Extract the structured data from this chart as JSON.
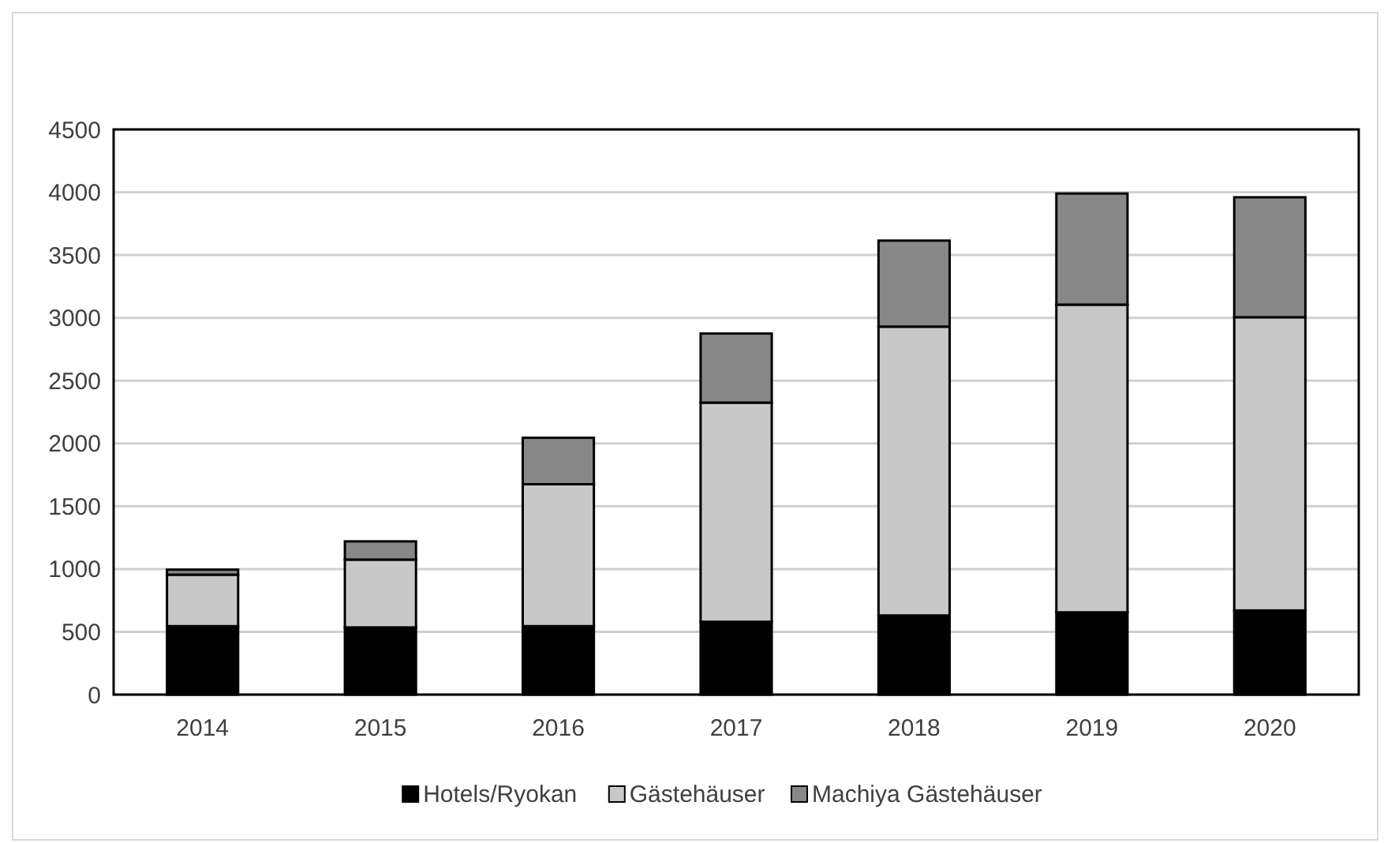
{
  "chart_data": {
    "type": "bar",
    "stacked": true,
    "categories": [
      "2014",
      "2015",
      "2016",
      "2017",
      "2018",
      "2019",
      "2020"
    ],
    "series": [
      {
        "name": "Hotels/Ryokan",
        "color": "#000000",
        "values": [
          545,
          535,
          545,
          580,
          630,
          655,
          670
        ]
      },
      {
        "name": "Gästehäuser",
        "color": "#c8c8c8",
        "values": [
          410,
          540,
          1130,
          1745,
          2300,
          2450,
          2335
        ]
      },
      {
        "name": "Machiya Gästehäuser",
        "color": "#888888",
        "values": [
          40,
          145,
          370,
          550,
          685,
          885,
          955
        ]
      }
    ],
    "ylim": [
      0,
      4500
    ],
    "yticks": [
      0,
      500,
      1000,
      1500,
      2000,
      2500,
      3000,
      3500,
      4000,
      4500
    ],
    "grid": "y",
    "legend": "bottom"
  }
}
